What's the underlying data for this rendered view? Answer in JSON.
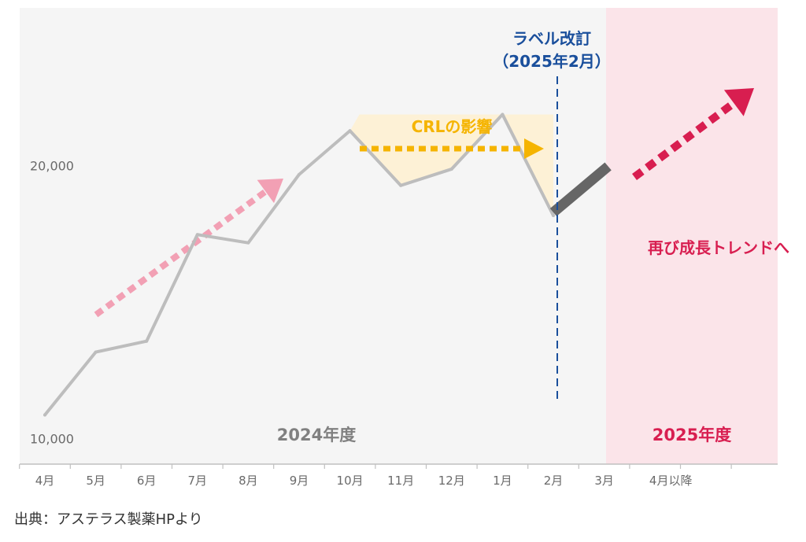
{
  "chart_data": {
    "type": "line",
    "categories": [
      "4月",
      "5月",
      "6月",
      "7月",
      "8月",
      "9月",
      "10月",
      "11月",
      "12月",
      "1月",
      "2月",
      "3月",
      "4月以降"
    ],
    "series": [
      {
        "values": [
          10900,
          13200,
          13600,
          17500,
          17200,
          19700,
          21300,
          19300,
          19900,
          21900,
          18200,
          null,
          null
        ]
      }
    ],
    "projection": {
      "from_category": "2月",
      "to_category": "3月",
      "from_value": 18200,
      "to_value": 20000
    },
    "crl_impact": {
      "from_category": "10月",
      "to_category": "2月",
      "baseline_value": 21900
    },
    "yticks": [
      {
        "value": 10000,
        "label": "10,000"
      },
      {
        "value": 20000,
        "label": "20,000"
      }
    ],
    "ylim": [
      9100,
      25800
    ],
    "grid": false,
    "periods": [
      {
        "label": "2024年度",
        "from_category": "4月",
        "to_category": "3月",
        "color": "#808080"
      },
      {
        "label": "2025年度",
        "from_category": "4月以降",
        "color": "#d81e50"
      }
    ],
    "annotations": {
      "label_revision": {
        "line1": "ラベル改訂",
        "line2": "（2025年2月）",
        "at_category": "2月",
        "color": "#1a4f9c"
      },
      "crl": {
        "label": "CRLの影響",
        "color": "#f5b400"
      },
      "regrowth": {
        "label": "再び成長トレンドへ",
        "color": "#d81e50"
      }
    }
  },
  "colors": {
    "background_fy2024": "#f5f5f5",
    "background_fy2025": "#fbe4e9",
    "line": "#bdbdbd",
    "projection": "#666666",
    "crl_fill": "#fdf1d6",
    "trend_arrow_pink": "#f2a0b4",
    "trend_arrow_red": "#d81e50"
  },
  "source": "出典：アステラス製薬HPより"
}
